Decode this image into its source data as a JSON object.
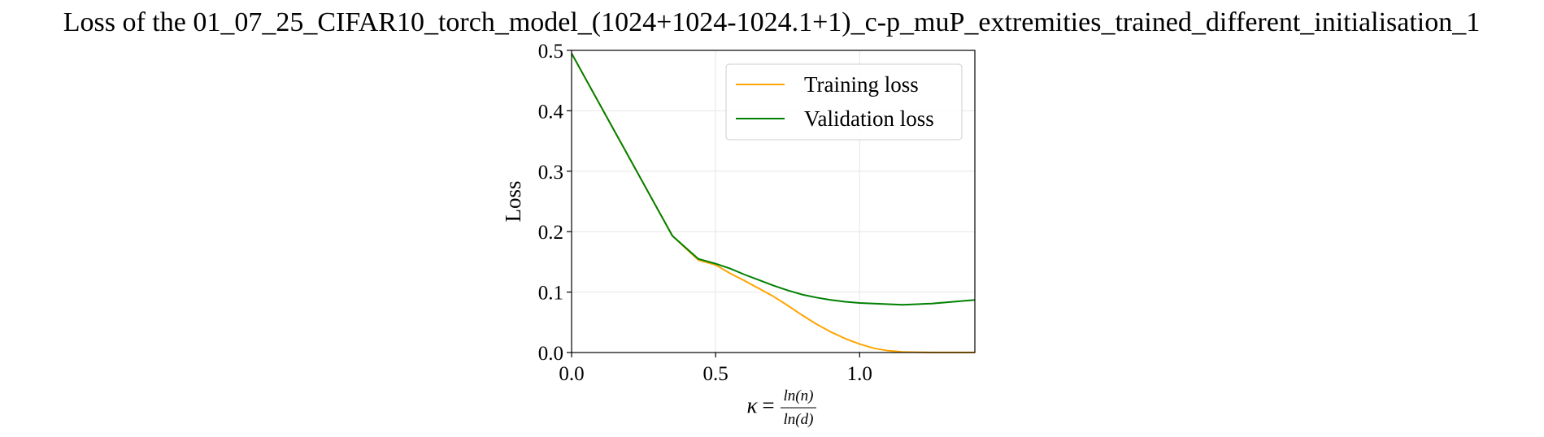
{
  "chart_data": {
    "type": "line",
    "title": "Loss of the 01_07_25_CIFAR10_torch_model_(1024+1024-1024.1+1)_c-p_muP_extremities_trained_different_initialisation_1",
    "xlabel": {
      "symbol": "κ",
      "equals": "=",
      "numerator": "ln(n)",
      "denominator": "ln(d)"
    },
    "ylabel": "Loss",
    "xlim": [
      0.0,
      1.4
    ],
    "ylim": [
      0.0,
      0.5
    ],
    "xticks": [
      0.0,
      0.5,
      1.0
    ],
    "xtick_labels": [
      "0.0",
      "0.5",
      "1.0"
    ],
    "yticks": [
      0.0,
      0.1,
      0.2,
      0.3,
      0.4,
      0.5
    ],
    "ytick_labels": [
      "0.0",
      "0.1",
      "0.2",
      "0.3",
      "0.4",
      "0.5"
    ],
    "grid": true,
    "legend_position": "upper right",
    "series": [
      {
        "name": "Training loss",
        "color": "#ffa500",
        "x": [
          0.0,
          0.35,
          0.44,
          0.5,
          0.55,
          0.6,
          0.65,
          0.7,
          0.75,
          0.8,
          0.85,
          0.9,
          0.95,
          1.0,
          1.05,
          1.1,
          1.15,
          1.2,
          1.25,
          1.3,
          1.35,
          1.4
        ],
        "y": [
          0.495,
          0.193,
          0.153,
          0.145,
          0.131,
          0.119,
          0.106,
          0.093,
          0.078,
          0.062,
          0.047,
          0.034,
          0.023,
          0.014,
          0.007,
          0.003,
          0.001,
          0.0005,
          0.0002,
          0.0001,
          0.0001,
          0.0001
        ]
      },
      {
        "name": "Validation loss",
        "color": "#008000",
        "x": [
          0.0,
          0.35,
          0.44,
          0.5,
          0.55,
          0.6,
          0.65,
          0.7,
          0.75,
          0.8,
          0.85,
          0.9,
          0.95,
          1.0,
          1.05,
          1.1,
          1.15,
          1.2,
          1.25,
          1.3,
          1.35,
          1.4
        ],
        "y": [
          0.495,
          0.193,
          0.155,
          0.147,
          0.139,
          0.129,
          0.12,
          0.111,
          0.103,
          0.096,
          0.091,
          0.087,
          0.084,
          0.082,
          0.081,
          0.08,
          0.079,
          0.08,
          0.081,
          0.083,
          0.085,
          0.087
        ]
      }
    ]
  }
}
